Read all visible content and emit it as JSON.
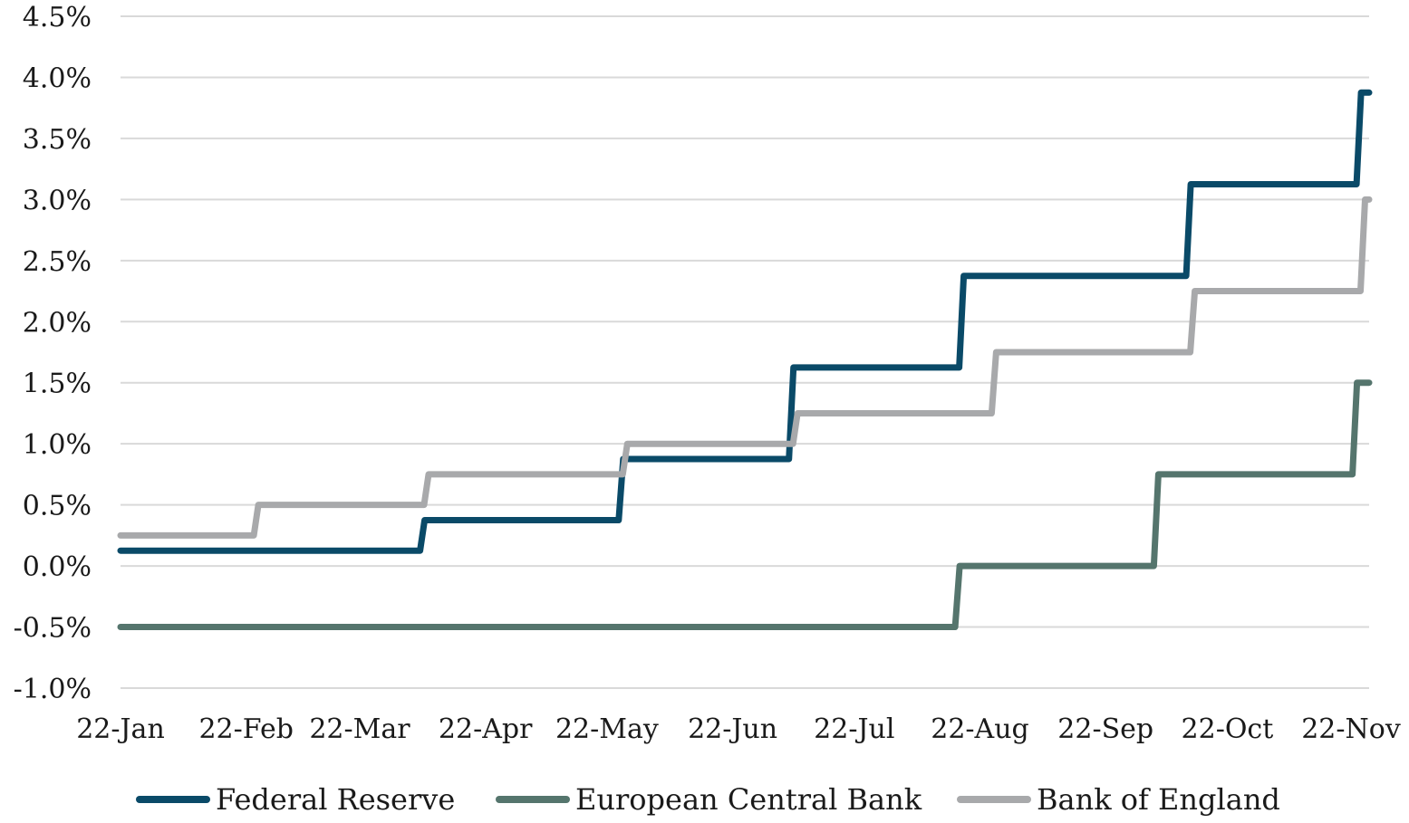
{
  "chart_data": {
    "type": "line",
    "line_style": "step",
    "title": "",
    "xlabel": "",
    "ylabel": "",
    "x_tick_labels": [
      "22-Jan",
      "22-Feb",
      "22-Mar",
      "22-Apr",
      "22-May",
      "22-Jun",
      "22-Jul",
      "22-Aug",
      "22-Sep",
      "22-Oct",
      "22-Nov"
    ],
    "y_ticks": [
      -1.0,
      -0.5,
      0.0,
      0.5,
      1.0,
      1.5,
      2.0,
      2.5,
      3.0,
      3.5,
      4.0,
      4.5
    ],
    "y_tick_labels": [
      "-1.0%",
      "-0.5%",
      "0.0%",
      "0.5%",
      "1.0%",
      "1.5%",
      "2.0%",
      "2.5%",
      "3.0%",
      "3.5%",
      "4.0%",
      "4.5%"
    ],
    "ylim": [
      -1.0,
      4.5
    ],
    "x_range": [
      "2022-01-01",
      "2022-11-05"
    ],
    "grid": "horizontal",
    "legend_position": "bottom",
    "series": [
      {
        "name": "Federal Reserve",
        "color": "#0a4a68",
        "points": [
          [
            "2022-01-01",
            0.125
          ],
          [
            "2022-03-17",
            0.375
          ],
          [
            "2022-05-05",
            0.875
          ],
          [
            "2022-06-16",
            1.625
          ],
          [
            "2022-07-28",
            2.375
          ],
          [
            "2022-09-22",
            3.125
          ],
          [
            "2022-11-03",
            3.875
          ],
          [
            "2022-11-05",
            3.875
          ]
        ]
      },
      {
        "name": "European Central Bank",
        "color": "#55756d",
        "points": [
          [
            "2022-01-01",
            -0.5
          ],
          [
            "2022-07-27",
            0.0
          ],
          [
            "2022-09-14",
            0.75
          ],
          [
            "2022-11-02",
            1.5
          ],
          [
            "2022-11-05",
            1.5
          ]
        ]
      },
      {
        "name": "Bank of England",
        "color": "#a8a9ab",
        "points": [
          [
            "2022-01-01",
            0.25
          ],
          [
            "2022-02-04",
            0.5
          ],
          [
            "2022-03-18",
            0.75
          ],
          [
            "2022-05-06",
            1.0
          ],
          [
            "2022-06-17",
            1.25
          ],
          [
            "2022-08-05",
            1.75
          ],
          [
            "2022-09-23",
            2.25
          ],
          [
            "2022-11-04",
            3.0
          ],
          [
            "2022-11-05",
            3.0
          ]
        ]
      }
    ]
  }
}
